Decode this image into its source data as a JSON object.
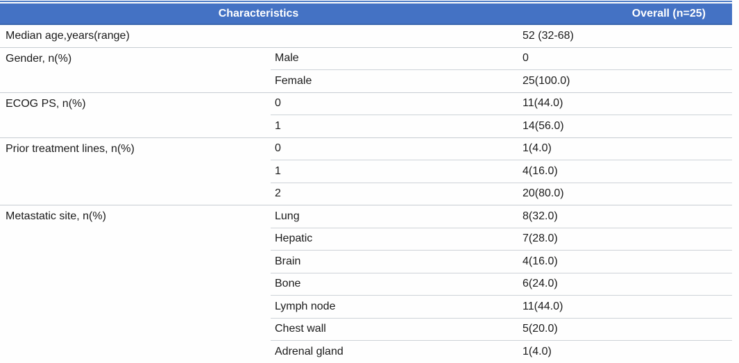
{
  "colors": {
    "header_bg": "#4472C4",
    "header_text": "#FFFFFF",
    "top_rule": "#4A79C5",
    "header_bottom_rule": "#3A66AE",
    "bottom_rule": "#41719C",
    "group_separator": "#C7CCD2",
    "sub_separator": "#CDD2D7",
    "body_text": "#1A1A1A"
  },
  "table": {
    "header": {
      "characteristics": "Characteristics",
      "overall": "Overall (n=25)"
    },
    "groups": [
      {
        "label": "Median age,years(range)",
        "rows": [
          {
            "sub": "",
            "value": "52 (32-68)"
          }
        ]
      },
      {
        "label": "Gender, n(%)",
        "rows": [
          {
            "sub": "Male",
            "value": "0"
          },
          {
            "sub": "Female",
            "value": "25(100.0)"
          }
        ]
      },
      {
        "label": "ECOG PS, n(%)",
        "rows": [
          {
            "sub": "0",
            "value": "11(44.0)"
          },
          {
            "sub": "1",
            "value": "14(56.0)"
          }
        ]
      },
      {
        "label": "Prior treatment lines, n(%)",
        "rows": [
          {
            "sub": "0",
            "value": "1(4.0)"
          },
          {
            "sub": "1",
            "value": "4(16.0)"
          },
          {
            "sub": "2",
            "value": "20(80.0)"
          }
        ]
      },
      {
        "label": "Metastatic site, n(%)",
        "rows": [
          {
            "sub": "Lung",
            "value": "8(32.0)"
          },
          {
            "sub": "Hepatic",
            "value": "7(28.0)"
          },
          {
            "sub": "Brain",
            "value": "4(16.0)"
          },
          {
            "sub": "Bone",
            "value": "6(24.0)"
          },
          {
            "sub": "Lymph node",
            "value": "11(44.0)"
          },
          {
            "sub": "Chest wall",
            "value": "5(20.0)"
          },
          {
            "sub": "Adrenal gland",
            "value": "1(4.0)"
          }
        ]
      }
    ]
  }
}
